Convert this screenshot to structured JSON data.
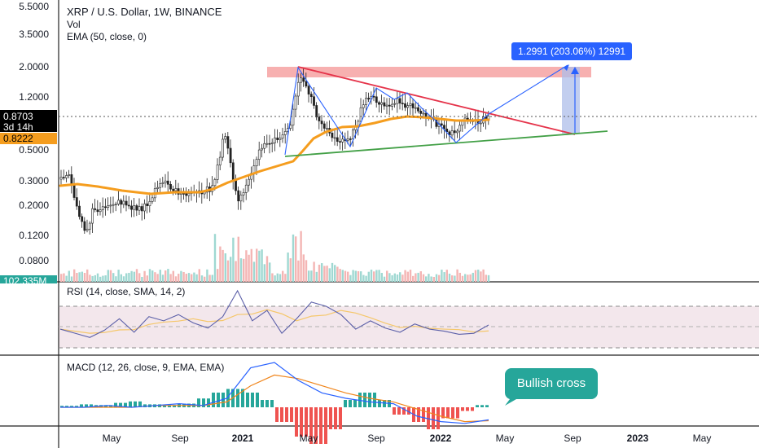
{
  "header": {
    "symbol_line": "XRP / U.S. Dollar, 1W, BINANCE",
    "vol_label": "Vol",
    "ema_label": "EMA (50, close, 0)"
  },
  "rsi_panel": {
    "label": "RSI (14, close, SMA, 14, 2)"
  },
  "macd_panel": {
    "label": "MACD (12, 26, close, 9, EMA, EMA)"
  },
  "price_scale": {
    "ticks": [
      "5.5000",
      "3.5000",
      "2.0000",
      "1.2000",
      "0.5000",
      "0.3000",
      "0.2000",
      "0.1200",
      "0.0800"
    ],
    "current_price": "0.8703",
    "countdown": "3d 14h",
    "ema_value": "0.8222",
    "volume_value": "102.335M"
  },
  "time_axis": {
    "ticks": [
      "May",
      "Sep",
      "2021",
      "May",
      "Sep",
      "2022",
      "May",
      "Sep",
      "2023",
      "May"
    ]
  },
  "measure_label": "1.2991 (203.06%) 12991",
  "callout": {
    "text": "Bullish cross"
  },
  "colors": {
    "up": "#26a69a",
    "down": "#ef5350",
    "ema": "#f59d1e",
    "trend_upper": "#e5334a",
    "trend_lower": "#43a047",
    "zigzag": "#2962ff",
    "resistance_zone": "#f6a2a2",
    "rsi": "#5b5fa8",
    "rsi_ma": "#f5c76a",
    "macd": "#2962ff",
    "signal": "#f0851b",
    "callout_bg": "#26a69a",
    "label_bg": "#2962ff"
  },
  "chart_data": {
    "type": "candlestick",
    "title": "XRP / U.S. Dollar, 1W, BINANCE",
    "yscale": "log",
    "ylim": [
      0.06,
      6
    ],
    "x_period": "weekly",
    "x_range": [
      "2020-03",
      "2023-06"
    ],
    "series": [
      {
        "name": "XRP/USD",
        "kind": "candles",
        "points": [
          {
            "t": "2020-03",
            "o": 0.23,
            "h": 0.25,
            "l": 0.11,
            "c": 0.14
          },
          {
            "t": "2020-05",
            "o": 0.2,
            "h": 0.22,
            "l": 0.18,
            "c": 0.2
          },
          {
            "t": "2020-07",
            "o": 0.17,
            "h": 0.25,
            "l": 0.17,
            "c": 0.24
          },
          {
            "t": "2020-08",
            "o": 0.24,
            "h": 0.33,
            "l": 0.23,
            "c": 0.28
          },
          {
            "t": "2020-10",
            "o": 0.24,
            "h": 0.26,
            "l": 0.23,
            "c": 0.25
          },
          {
            "t": "2020-11",
            "o": 0.3,
            "h": 0.9,
            "l": 0.3,
            "c": 0.55
          },
          {
            "t": "2020-12",
            "o": 0.56,
            "h": 0.62,
            "l": 0.17,
            "c": 0.22
          },
          {
            "t": "2021-02",
            "o": 0.44,
            "h": 0.75,
            "l": 0.35,
            "c": 0.6
          },
          {
            "t": "2021-04",
            "o": 1.0,
            "h": 1.96,
            "l": 0.85,
            "c": 1.6
          },
          {
            "t": "2021-06",
            "o": 0.9,
            "h": 1.0,
            "l": 0.5,
            "c": 0.65
          },
          {
            "t": "2021-09",
            "o": 1.3,
            "h": 1.4,
            "l": 0.9,
            "c": 1.1
          },
          {
            "t": "2021-12",
            "o": 0.9,
            "h": 1.0,
            "l": 0.6,
            "c": 0.83
          },
          {
            "t": "2022-01",
            "o": 0.75,
            "h": 0.78,
            "l": 0.55,
            "c": 0.6
          },
          {
            "t": "2022-03",
            "o": 0.8,
            "h": 0.9,
            "l": 0.7,
            "c": 0.87
          }
        ]
      },
      {
        "name": "EMA (50, close, 0)",
        "kind": "line",
        "points": [
          {
            "t": "2020-03",
            "v": 0.24
          },
          {
            "t": "2020-09",
            "v": 0.23
          },
          {
            "t": "2020-11",
            "v": 0.25
          },
          {
            "t": "2021-01",
            "v": 0.32
          },
          {
            "t": "2021-03",
            "v": 0.45
          },
          {
            "t": "2021-05",
            "v": 0.7
          },
          {
            "t": "2021-08",
            "v": 0.82
          },
          {
            "t": "2021-11",
            "v": 0.92
          },
          {
            "t": "2022-03",
            "v": 0.8222
          }
        ]
      },
      {
        "name": "Vol",
        "kind": "histogram",
        "values_relative": [
          0.15,
          0.25,
          0.1,
          0.12,
          0.3,
          0.9,
          0.6,
          0.55,
          1.0,
          0.7,
          0.35,
          0.25,
          0.2,
          0.15,
          0.1
        ]
      }
    ],
    "annotations": {
      "resistance_zone": {
        "y": [
          1.7,
          2.05
        ],
        "x": [
          "2021-04",
          "2022-10"
        ]
      },
      "descending_trendline": [
        {
          "t": "2021-04",
          "v": 1.96
        },
        {
          "t": "2022-09",
          "v": 0.62
        }
      ],
      "ascending_trendline": [
        {
          "t": "2021-02",
          "v": 0.44
        },
        {
          "t": "2022-12",
          "v": 0.67
        }
      ],
      "projected_target": 2.05,
      "measure_move": {
        "change": 1.2991,
        "percent": 203.06,
        "ticks": 12991
      }
    },
    "indicators": {
      "rsi": {
        "bands": [
          70,
          30
        ],
        "middle": 50,
        "values": [
          48,
          44,
          40,
          47,
          58,
          45,
          60,
          56,
          62,
          54,
          49,
          60,
          85,
          56,
          66,
          44,
          58,
          74,
          70,
          62,
          48,
          56,
          49,
          45,
          53,
          48,
          46,
          43,
          44,
          52
        ]
      },
      "macd": {
        "hist": [
          0.002,
          0.004,
          0.003,
          0.006,
          0.008,
          0.004,
          0.003,
          0.005,
          0.012,
          0.02,
          0.025,
          0.02,
          0.01,
          -0.02,
          -0.04,
          -0.05,
          -0.03,
          0.01,
          0.02,
          0.01,
          -0.01,
          -0.02,
          -0.03,
          -0.015,
          -0.005,
          0.003
        ],
        "macd_line": [
          0.0,
          0.0,
          0.01,
          0.0,
          0.01,
          0.02,
          0.01,
          0.05,
          0.22,
          0.25,
          0.15,
          0.08,
          0.05,
          0.03,
          0.02,
          -0.05,
          -0.08,
          -0.09,
          -0.07
        ],
        "signal_line": [
          0.0,
          0.0,
          0.0,
          0.0,
          0.01,
          0.01,
          0.01,
          0.03,
          0.12,
          0.18,
          0.16,
          0.12,
          0.08,
          0.05,
          0.03,
          -0.01,
          -0.05,
          -0.08,
          -0.075
        ]
      }
    }
  }
}
